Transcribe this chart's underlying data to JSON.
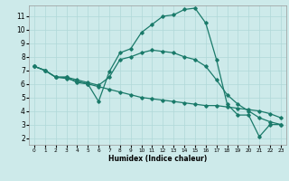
{
  "xlabel": "Humidex (Indice chaleur)",
  "xlim": [
    -0.5,
    23.5
  ],
  "ylim": [
    1.5,
    11.8
  ],
  "xticks": [
    0,
    1,
    2,
    3,
    4,
    5,
    6,
    7,
    8,
    9,
    10,
    11,
    12,
    13,
    14,
    15,
    16,
    17,
    18,
    19,
    20,
    21,
    22,
    23
  ],
  "yticks": [
    2,
    3,
    4,
    5,
    6,
    7,
    8,
    9,
    10,
    11
  ],
  "bg_color": "#cdeaea",
  "line_color": "#1a7a6a",
  "grid_color": "#b0d8d8",
  "line1_x": [
    0,
    1,
    2,
    3,
    4,
    5,
    6,
    7,
    8,
    9,
    10,
    11,
    12,
    13,
    14,
    15,
    16,
    17,
    18,
    19,
    20,
    21,
    22,
    23
  ],
  "line1_y": [
    7.3,
    7.0,
    6.5,
    6.5,
    6.1,
    6.0,
    4.7,
    6.9,
    8.3,
    8.6,
    9.8,
    10.4,
    11.0,
    11.1,
    11.5,
    11.6,
    10.5,
    7.8,
    4.5,
    3.7,
    3.7,
    2.1,
    3.0,
    3.0
  ],
  "line2_x": [
    0,
    1,
    2,
    3,
    4,
    5,
    6,
    7,
    8,
    9,
    10,
    11,
    12,
    13,
    14,
    15,
    16,
    17,
    18,
    19,
    20,
    21,
    22,
    23
  ],
  "line2_y": [
    7.3,
    7.0,
    6.5,
    6.5,
    6.3,
    6.1,
    5.9,
    6.5,
    7.8,
    8.0,
    8.3,
    8.5,
    8.4,
    8.3,
    8.0,
    7.8,
    7.3,
    6.3,
    5.2,
    4.5,
    4.0,
    3.5,
    3.2,
    3.0
  ],
  "line3_x": [
    0,
    1,
    2,
    3,
    4,
    5,
    6,
    7,
    8,
    9,
    10,
    11,
    12,
    13,
    14,
    15,
    16,
    17,
    18,
    19,
    20,
    21,
    22,
    23
  ],
  "line3_y": [
    7.3,
    7.0,
    6.5,
    6.4,
    6.2,
    6.0,
    5.8,
    5.6,
    5.4,
    5.2,
    5.0,
    4.9,
    4.8,
    4.7,
    4.6,
    4.5,
    4.4,
    4.4,
    4.3,
    4.2,
    4.1,
    4.0,
    3.8,
    3.5
  ]
}
